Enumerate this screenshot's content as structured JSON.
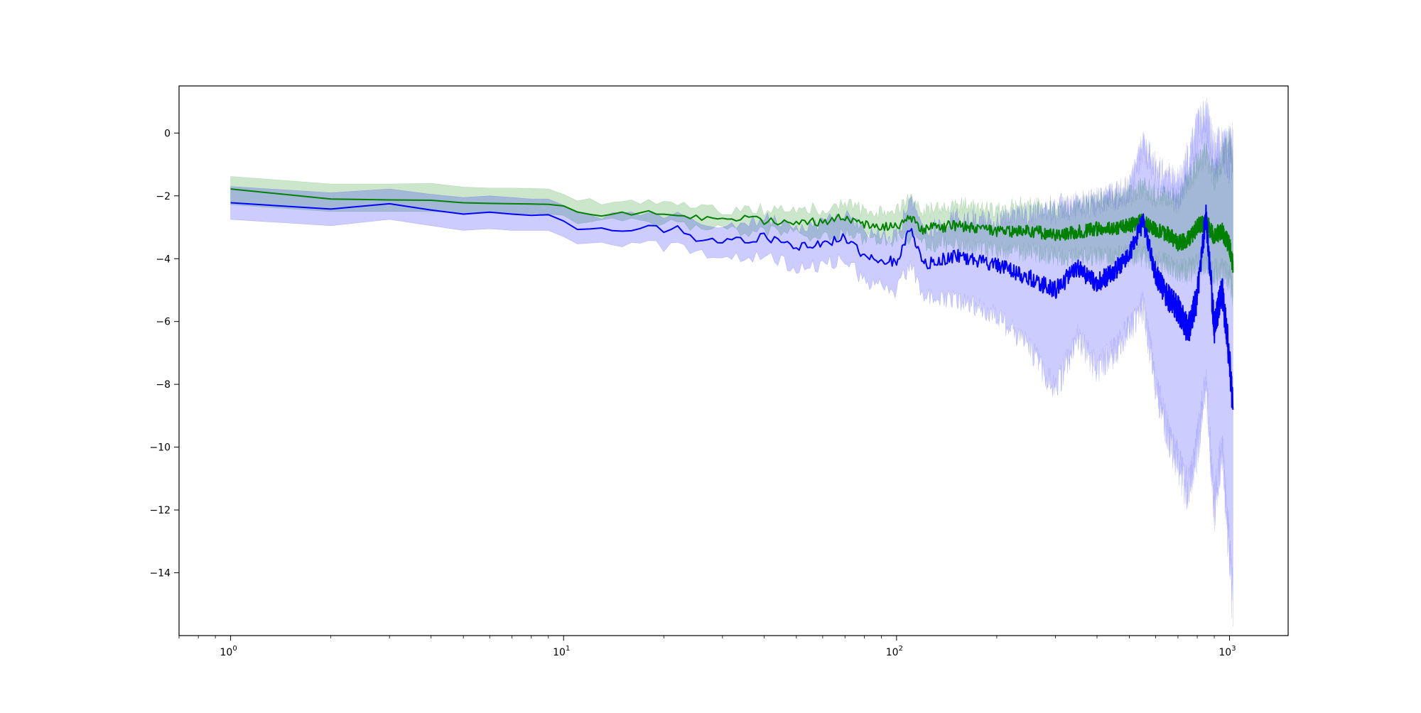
{
  "chart_data": {
    "type": "line",
    "title": "",
    "xlabel": "",
    "ylabel": "",
    "xscale": "log",
    "xlim": [
      0.7,
      1500
    ],
    "ylim": [
      -16,
      1.5
    ],
    "grid": false,
    "legend": "none",
    "x_ticks": [
      {
        "base": "10",
        "exp": "0",
        "value": 1
      },
      {
        "base": "10",
        "exp": "1",
        "value": 10
      },
      {
        "base": "10",
        "exp": "2",
        "value": 100
      },
      {
        "base": "10",
        "exp": "3",
        "value": 1000
      }
    ],
    "y_ticks": [
      {
        "label": "0",
        "value": 0
      },
      {
        "label": "−2",
        "value": -2
      },
      {
        "label": "−4",
        "value": -4
      },
      {
        "label": "−6",
        "value": -6
      },
      {
        "label": "−8",
        "value": -8
      },
      {
        "label": "−10",
        "value": -10
      },
      {
        "label": "−12",
        "value": -12
      },
      {
        "label": "−14",
        "value": -14
      }
    ],
    "series": [
      {
        "color": "#008000",
        "band_color": "#008000",
        "band_opacity": 0.2,
        "x": [
          1,
          2,
          3,
          4,
          5,
          6,
          7,
          8,
          9,
          10,
          11,
          12,
          15,
          18,
          20,
          22,
          25,
          30,
          35,
          40,
          45,
          50,
          60,
          70,
          80,
          90,
          100,
          110,
          120,
          150,
          200,
          250,
          300,
          350,
          400,
          450,
          500,
          550,
          600,
          650,
          700,
          750,
          800,
          850,
          900,
          950,
          1000,
          1024
        ],
        "mean": [
          -1.78,
          -2.1,
          -2.13,
          -2.14,
          -2.22,
          -2.24,
          -2.25,
          -2.26,
          -2.27,
          -2.32,
          -2.48,
          -2.55,
          -2.55,
          -2.52,
          -2.62,
          -2.55,
          -2.7,
          -2.78,
          -2.72,
          -2.78,
          -2.85,
          -2.8,
          -2.82,
          -2.7,
          -2.9,
          -3.0,
          -2.95,
          -2.7,
          -3.05,
          -2.95,
          -3.15,
          -3.1,
          -3.25,
          -3.15,
          -3.05,
          -3.05,
          -2.95,
          -2.8,
          -3.1,
          -3.2,
          -3.5,
          -3.4,
          -3.0,
          -2.85,
          -3.3,
          -3.1,
          -3.6,
          -4.2
        ],
        "lower": [
          -2.28,
          -2.5,
          -2.5,
          -2.5,
          -2.55,
          -2.55,
          -2.56,
          -2.57,
          -2.58,
          -2.62,
          -2.75,
          -2.85,
          -2.85,
          -2.85,
          -2.9,
          -2.9,
          -3.0,
          -3.1,
          -3.15,
          -3.1,
          -3.2,
          -3.2,
          -3.25,
          -3.2,
          -3.35,
          -3.4,
          -3.4,
          -3.3,
          -3.5,
          -3.55,
          -3.75,
          -3.8,
          -3.9,
          -3.95,
          -3.9,
          -3.95,
          -3.9,
          -3.9,
          -4.1,
          -4.2,
          -4.35,
          -4.4,
          -4.2,
          -4.0,
          -4.4,
          -4.4,
          -4.6,
          -5.1
        ],
        "upper": [
          -1.38,
          -1.62,
          -1.62,
          -1.6,
          -1.72,
          -1.75,
          -1.75,
          -1.76,
          -1.78,
          -1.95,
          -2.15,
          -2.22,
          -2.22,
          -2.2,
          -2.3,
          -2.25,
          -2.4,
          -2.45,
          -2.42,
          -2.45,
          -2.5,
          -2.4,
          -2.4,
          -2.3,
          -2.45,
          -2.55,
          -2.4,
          -2.15,
          -2.5,
          -2.3,
          -2.45,
          -2.3,
          -2.5,
          -2.3,
          -2.15,
          -2.1,
          -2.0,
          -1.7,
          -2.0,
          -2.0,
          -2.2,
          -1.5,
          -1.0,
          -0.6,
          -1.4,
          -0.8,
          -0.2,
          -0.9
        ]
      },
      {
        "color": "#0000ff",
        "band_color": "#0000ff",
        "band_opacity": 0.2,
        "x": [
          1,
          2,
          3,
          4,
          5,
          6,
          7,
          8,
          9,
          10,
          11,
          12,
          15,
          18,
          20,
          22,
          25,
          30,
          35,
          40,
          45,
          50,
          60,
          70,
          80,
          90,
          100,
          110,
          120,
          150,
          200,
          250,
          300,
          350,
          400,
          450,
          500,
          550,
          600,
          650,
          700,
          750,
          800,
          850,
          900,
          950,
          1000,
          1024
        ],
        "mean": [
          -2.22,
          -2.42,
          -2.25,
          -2.45,
          -2.58,
          -2.52,
          -2.58,
          -2.62,
          -2.6,
          -2.8,
          -3.05,
          -3.1,
          -3.1,
          -3.0,
          -3.1,
          -3.05,
          -3.35,
          -3.5,
          -3.4,
          -3.3,
          -3.45,
          -3.6,
          -3.55,
          -3.3,
          -3.9,
          -4.0,
          -4.15,
          -3.1,
          -4.2,
          -3.9,
          -4.2,
          -4.6,
          -5.0,
          -4.3,
          -4.8,
          -4.4,
          -3.9,
          -2.8,
          -4.5,
          -5.2,
          -5.6,
          -6.3,
          -5.2,
          -2.6,
          -6.2,
          -5.0,
          -7.2,
          -8.9
        ],
        "lower": [
          -2.75,
          -2.95,
          -2.75,
          -2.95,
          -3.1,
          -3.05,
          -3.1,
          -3.1,
          -3.1,
          -3.3,
          -3.55,
          -3.6,
          -3.6,
          -3.55,
          -3.6,
          -3.6,
          -3.85,
          -4.0,
          -3.95,
          -3.95,
          -4.1,
          -4.25,
          -4.2,
          -4.0,
          -4.7,
          -4.9,
          -5.0,
          -4.2,
          -5.2,
          -5.3,
          -5.8,
          -6.8,
          -8.2,
          -6.5,
          -7.5,
          -7.0,
          -6.2,
          -5.5,
          -8.0,
          -9.5,
          -10.5,
          -11.5,
          -10.0,
          -8.0,
          -12.0,
          -10.0,
          -13.5,
          -15.1
        ],
        "upper": [
          -1.7,
          -1.9,
          -1.78,
          -1.95,
          -2.05,
          -2.0,
          -2.05,
          -2.1,
          -2.1,
          -2.3,
          -2.55,
          -2.6,
          -2.6,
          -2.5,
          -2.6,
          -2.5,
          -2.85,
          -3.0,
          -2.9,
          -2.7,
          -2.85,
          -3.0,
          -2.9,
          -2.6,
          -3.1,
          -3.2,
          -3.3,
          -2.1,
          -3.2,
          -2.7,
          -2.8,
          -2.6,
          -2.4,
          -2.3,
          -2.2,
          -2.0,
          -1.8,
          -0.4,
          -1.2,
          -1.5,
          -1.8,
          -1.0,
          0.0,
          0.6,
          -0.8,
          -0.4,
          -0.8,
          -0.5
        ]
      }
    ]
  }
}
